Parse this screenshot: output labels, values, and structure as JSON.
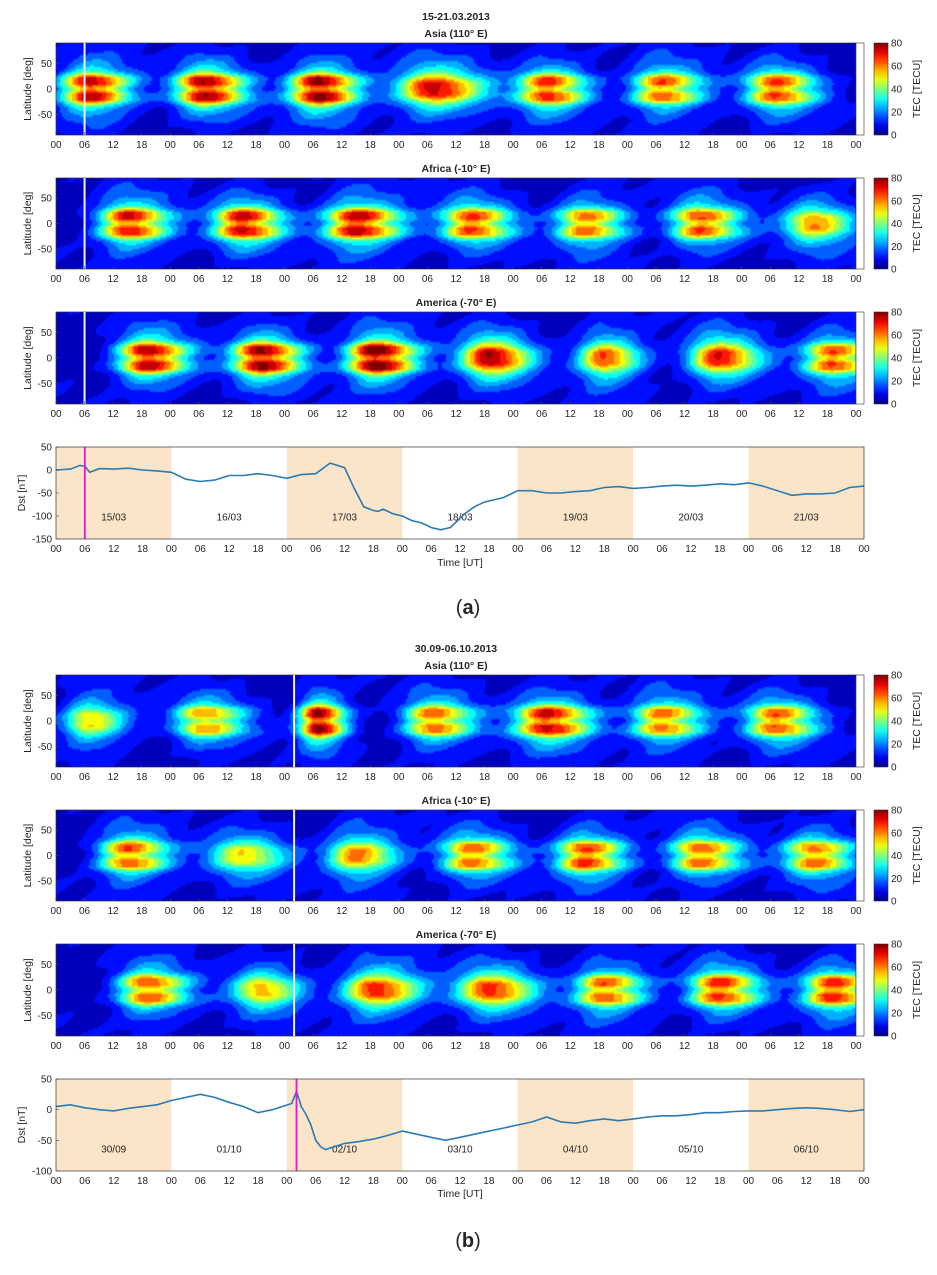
{
  "chart_data": {
    "type": "heatmap",
    "panels": [
      {
        "id": "a",
        "caption_letter": "a",
        "title": "15-21.03.2013",
        "day_labels": [
          "15/03",
          "16/03",
          "17/03",
          "18/03",
          "19/03",
          "20/03",
          "21/03"
        ],
        "shaded_days": [
          0,
          2,
          4,
          6
        ],
        "storm_onset_hour": 6,
        "dst_xlabel": "Time [UT]",
        "dst_ylabel": "Dst [nT]",
        "dst_ylim": [
          -150,
          50
        ],
        "dst_yticks": [
          "50",
          "0",
          "-50",
          "-100",
          "-150"
        ],
        "dst": {
          "hours": [
            0,
            3,
            5,
            6,
            7,
            9,
            12,
            15,
            18,
            21,
            24,
            27,
            30,
            33,
            36,
            39,
            42,
            45,
            48,
            51,
            54,
            57,
            60,
            62,
            64,
            66,
            67,
            68,
            69,
            70,
            72,
            74,
            76,
            78,
            80,
            82,
            84,
            85,
            87,
            89,
            91,
            93,
            96,
            99,
            102,
            105,
            108,
            111,
            114,
            117,
            120,
            123,
            126,
            129,
            132,
            135,
            138,
            141,
            144,
            147,
            150,
            153,
            156,
            159,
            162,
            165,
            168
          ],
          "values": [
            0,
            2,
            10,
            8,
            -5,
            3,
            2,
            4,
            0,
            -2,
            -5,
            -20,
            -25,
            -22,
            -12,
            -12,
            -8,
            -12,
            -18,
            -10,
            -8,
            15,
            5,
            -40,
            -80,
            -88,
            -90,
            -85,
            -90,
            -95,
            -100,
            -110,
            -115,
            -125,
            -130,
            -125,
            -105,
            -95,
            -80,
            -70,
            -65,
            -60,
            -45,
            -45,
            -50,
            -50,
            -47,
            -45,
            -38,
            -36,
            -40,
            -38,
            -35,
            -33,
            -35,
            -33,
            -30,
            -32,
            -28,
            -35,
            -45,
            -55,
            -52,
            -52,
            -50,
            -38,
            -35
          ]
        },
        "rows": [
          {
            "title": "Asia (110° E)",
            "ylabel": "Latitude [deg]",
            "clabel": "TEC [TECU]",
            "peak_hour": 7,
            "amplitudes": [
              0.9,
              0.9,
              0.95,
              0.85,
              0.78,
              0.75,
              0.75
            ],
            "sigma_hours": [
              4.5,
              4.5,
              4.5,
              5.5,
              4.5,
              4.5,
              4.5
            ],
            "lat_split": [
              1,
              1,
              1,
              0,
              1,
              1,
              1
            ]
          },
          {
            "title": "Africa (-10° E)",
            "ylabel": "Latitude [deg]",
            "clabel": "TEC [TECU]",
            "peak_hour": 15,
            "amplitudes": [
              0.85,
              0.85,
              0.9,
              0.75,
              0.72,
              0.75,
              0.65
            ],
            "sigma_hours": [
              4.5,
              4.5,
              5,
              4.5,
              4.5,
              4.5,
              4.5
            ],
            "lat_split": [
              1,
              1,
              1,
              1,
              1,
              1,
              0
            ]
          },
          {
            "title": "America (-70° E)",
            "ylabel": "Latitude [deg]",
            "clabel": "TEC [TECU]",
            "peak_hour": 19,
            "amplitudes": [
              0.9,
              0.92,
              1.0,
              0.88,
              0.75,
              0.8,
              0.75
            ],
            "sigma_hours": [
              4.5,
              4.5,
              4.5,
              4.5,
              4,
              4.5,
              4.5
            ],
            "lat_split": [
              1,
              1,
              1,
              0,
              0,
              0,
              1
            ]
          }
        ]
      },
      {
        "id": "b",
        "caption_letter": "b",
        "title": "30.09-06.10.2013",
        "day_labels": [
          "30/09",
          "01/10",
          "02/10",
          "03/10",
          "04/10",
          "05/10",
          "06/10"
        ],
        "shaded_days": [
          0,
          2,
          4,
          6
        ],
        "storm_onset_hour": 50,
        "dst_xlabel": "Time [UT]",
        "dst_ylabel": "Dst [nT]",
        "dst_ylim": [
          -100,
          50
        ],
        "dst_yticks": [
          "50",
          "0",
          "-50",
          "-100"
        ],
        "dst": {
          "hours": [
            0,
            3,
            6,
            9,
            12,
            15,
            18,
            21,
            24,
            27,
            30,
            33,
            36,
            39,
            42,
            45,
            47,
            49,
            50,
            51,
            52,
            53,
            54,
            55,
            56,
            58,
            60,
            63,
            66,
            69,
            72,
            75,
            78,
            81,
            84,
            87,
            90,
            93,
            96,
            99,
            102,
            105,
            108,
            111,
            114,
            117,
            120,
            123,
            126,
            129,
            132,
            135,
            138,
            141,
            144,
            147,
            150,
            153,
            156,
            159,
            162,
            165,
            168
          ],
          "values": [
            5,
            8,
            3,
            0,
            -2,
            2,
            5,
            8,
            15,
            20,
            25,
            20,
            12,
            5,
            -5,
            0,
            5,
            10,
            30,
            5,
            -8,
            -25,
            -50,
            -60,
            -65,
            -60,
            -55,
            -52,
            -48,
            -42,
            -35,
            -40,
            -45,
            -50,
            -45,
            -40,
            -35,
            -30,
            -25,
            -20,
            -12,
            -20,
            -22,
            -18,
            -15,
            -18,
            -15,
            -12,
            -10,
            -10,
            -8,
            -5,
            -5,
            -3,
            -2,
            -2,
            0,
            2,
            3,
            2,
            0,
            -3,
            0
          ]
        },
        "rows": [
          {
            "title": "Asia (110° E)",
            "ylabel": "Latitude [deg]",
            "clabel": "TEC [TECU]",
            "peak_hour": 7,
            "amplitudes": [
              0.6,
              0.65,
              0.95,
              0.72,
              0.85,
              0.72,
              0.72
            ],
            "sigma_hours": [
              4,
              4.5,
              3,
              4.5,
              5,
              4.5,
              4.5
            ],
            "lat_split": [
              0,
              1,
              1,
              1,
              1,
              1,
              1
            ]
          },
          {
            "title": "Africa (-10° E)",
            "ylabel": "Latitude [deg]",
            "clabel": "TEC [TECU]",
            "peak_hour": 15,
            "amplitudes": [
              0.75,
              0.55,
              0.7,
              0.7,
              0.78,
              0.72,
              0.7
            ],
            "sigma_hours": [
              4.5,
              5,
              4.5,
              4.5,
              4.5,
              4.5,
              4.5
            ],
            "lat_split": [
              1,
              0,
              0,
              1,
              1,
              1,
              1
            ]
          },
          {
            "title": "America (-70° E)",
            "ylabel": "Latitude [deg]",
            "clabel": "TEC [TECU]",
            "peak_hour": 19,
            "amplitudes": [
              0.75,
              0.6,
              0.8,
              0.75,
              0.75,
              0.78,
              0.8
            ],
            "sigma_hours": [
              4.5,
              4.5,
              5,
              5,
              4.5,
              4.5,
              4.5
            ],
            "lat_split": [
              1,
              0,
              0,
              0,
              1,
              1,
              1
            ]
          }
        ]
      }
    ],
    "xticks": [
      "00",
      "06",
      "12",
      "18"
    ],
    "x_end_tick": "00",
    "x_range_hours": [
      0,
      168
    ],
    "lat_range": [
      -90,
      90
    ],
    "lat_ticks": [
      "50",
      "0",
      "-50"
    ],
    "colorbar_ticks": [
      "80",
      "60",
      "40",
      "20",
      "0"
    ],
    "colorbar_range": [
      0,
      80
    ],
    "colormap": "jet",
    "colors": {
      "day_shade": "#fbe5c8",
      "dst_line": "#2a7ab4",
      "onset_line": "#e619c8",
      "onset_line_tec": "#f0f0f0",
      "background_tec": "#00067a"
    }
  }
}
